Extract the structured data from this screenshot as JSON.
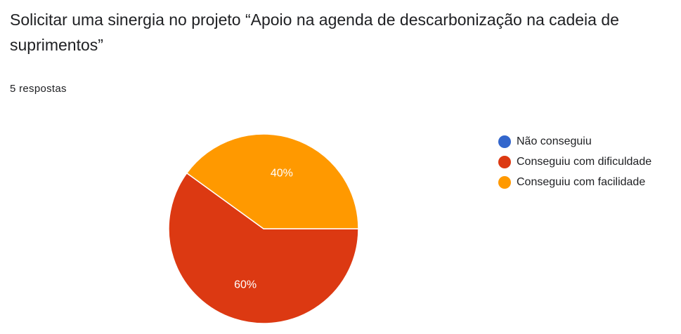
{
  "title": "Solicitar uma sinergia no projeto “Apoio na agenda de descarbonização na cadeia de suprimentos”",
  "response_count": "5 respostas",
  "chart_data": {
    "type": "pie",
    "legend_position": "right",
    "slices": [
      {
        "label": "Não conseguiu",
        "value": 0,
        "percent_label": "",
        "color": "#3366cc"
      },
      {
        "label": "Conseguiu com dificuldade",
        "value": 60,
        "percent_label": "60%",
        "color": "#dc3912"
      },
      {
        "label": "Conseguiu com facilidade",
        "value": 40,
        "percent_label": "40%",
        "color": "#ff9900"
      }
    ]
  }
}
